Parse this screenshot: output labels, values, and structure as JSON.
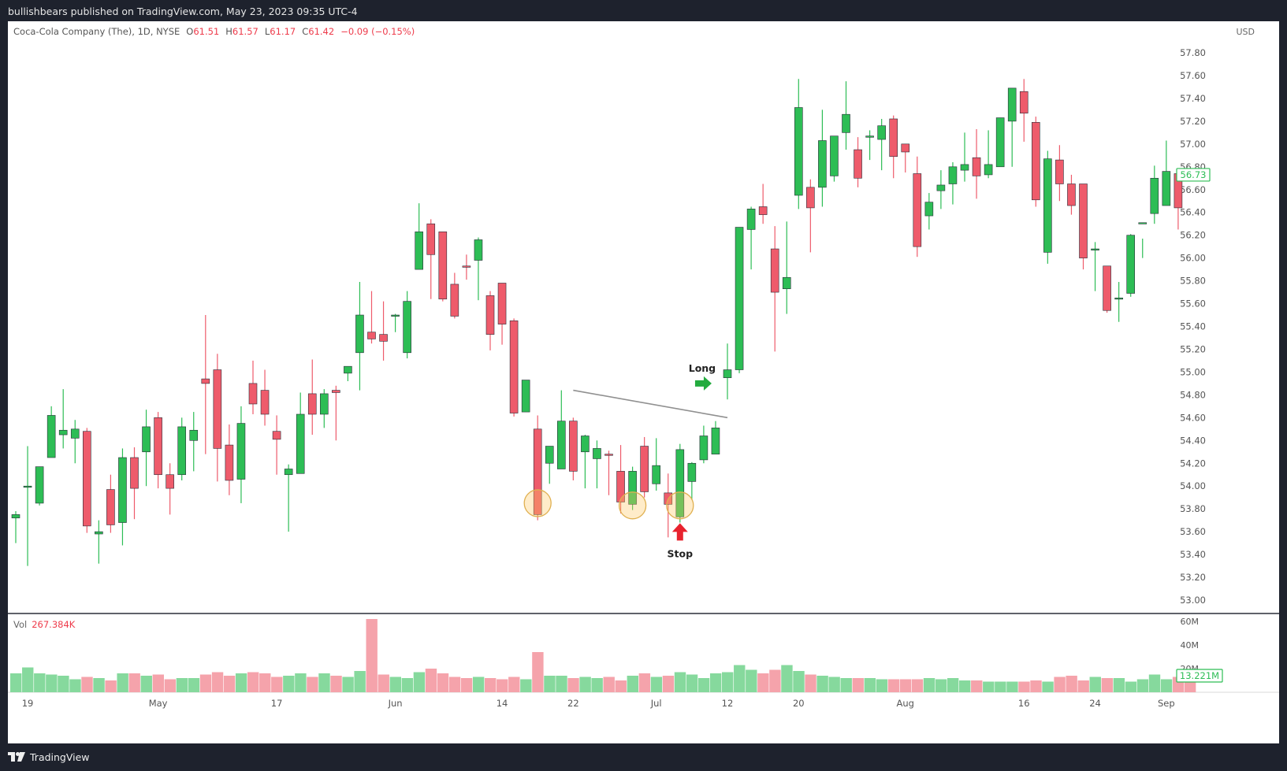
{
  "header": {
    "published_text": "bullishbears published on TradingView.com, May 23, 2023 09:35 UTC-4"
  },
  "legend": {
    "symbol": "Coca-Cola Company (The), 1D, NYSE",
    "o_label": "O",
    "o_value": "61.51",
    "h_label": "H",
    "h_value": "61.57",
    "l_label": "L",
    "l_value": "61.17",
    "c_label": "C",
    "c_value": "61.42",
    "change": "−0.09 (−0.15%)"
  },
  "currency": "USD",
  "volume_legend": {
    "label": "Vol",
    "value": "267.384K"
  },
  "footer": {
    "brand": "TradingView"
  },
  "colors": {
    "up": "#2dbd55",
    "down": "#ee5b6b",
    "up_vol": "#86d99d",
    "down_vol": "#f5a3ab",
    "accent_green": "#22ab3e",
    "accent_red": "#e8232e"
  },
  "chart_data": {
    "type": "candlestick",
    "y_ticks": [
      "57.80",
      "57.60",
      "57.40",
      "57.20",
      "57.00",
      "56.80",
      "56.60",
      "56.40",
      "56.20",
      "56.00",
      "55.80",
      "55.60",
      "55.40",
      "55.20",
      "55.00",
      "54.80",
      "54.60",
      "54.40",
      "54.20",
      "54.00",
      "53.80",
      "53.60",
      "53.40",
      "53.20",
      "53.00"
    ],
    "ylim": [
      52.9,
      58.0
    ],
    "last_price": "56.73",
    "x_ticks": [
      {
        "i": 1,
        "label": "19"
      },
      {
        "i": 12,
        "label": "May"
      },
      {
        "i": 22,
        "label": "17"
      },
      {
        "i": 32,
        "label": "Jun"
      },
      {
        "i": 41,
        "label": "14"
      },
      {
        "i": 47,
        "label": "22"
      },
      {
        "i": 54,
        "label": "Jul"
      },
      {
        "i": 60,
        "label": "12"
      },
      {
        "i": 66,
        "label": "20"
      },
      {
        "i": 75,
        "label": "Aug"
      },
      {
        "i": 85,
        "label": "16"
      },
      {
        "i": 91,
        "label": "24"
      },
      {
        "i": 97,
        "label": "Sep"
      }
    ],
    "candles": [
      [
        53.72,
        53.78,
        53.75,
        53.5
      ],
      [
        54.0,
        54.35,
        54.0,
        53.3
      ],
      [
        53.85,
        54.17,
        54.17,
        53.83
      ],
      [
        54.25,
        54.7,
        54.62,
        54.25
      ],
      [
        54.45,
        54.85,
        54.49,
        54.33
      ],
      [
        54.42,
        54.58,
        54.5,
        54.2
      ],
      [
        54.48,
        54.51,
        53.65,
        53.59
      ],
      [
        53.58,
        53.7,
        53.6,
        53.32
      ],
      [
        53.97,
        54.1,
        53.66,
        53.59
      ],
      [
        53.68,
        54.33,
        54.25,
        53.48
      ],
      [
        54.25,
        54.34,
        53.98,
        53.71
      ],
      [
        54.3,
        54.67,
        54.52,
        54.0
      ],
      [
        54.6,
        54.65,
        54.1,
        53.98
      ],
      [
        54.1,
        54.2,
        53.98,
        53.75
      ],
      [
        54.1,
        54.6,
        54.52,
        54.05
      ],
      [
        54.4,
        54.65,
        54.49,
        54.13
      ],
      [
        54.94,
        55.5,
        54.9,
        54.28
      ],
      [
        55.02,
        55.16,
        54.33,
        54.04
      ],
      [
        54.36,
        54.54,
        54.05,
        53.92
      ],
      [
        54.06,
        54.7,
        54.55,
        53.85
      ],
      [
        54.9,
        55.1,
        54.72,
        54.63
      ],
      [
        54.84,
        55.02,
        54.63,
        54.53
      ],
      [
        54.48,
        54.62,
        54.41,
        54.1
      ],
      [
        54.1,
        54.19,
        54.15,
        53.6
      ],
      [
        54.11,
        54.82,
        54.63,
        54.27
      ],
      [
        54.81,
        55.11,
        54.63,
        54.45
      ],
      [
        54.63,
        54.85,
        54.81,
        54.51
      ],
      [
        54.84,
        54.88,
        54.82,
        54.4
      ],
      [
        54.99,
        55.05,
        55.05,
        54.92
      ],
      [
        55.17,
        55.79,
        55.5,
        54.84
      ],
      [
        55.35,
        55.71,
        55.29,
        55.25
      ],
      [
        55.33,
        55.62,
        55.27,
        55.1
      ],
      [
        55.49,
        55.51,
        55.5,
        55.35
      ],
      [
        55.17,
        55.71,
        55.62,
        55.12
      ],
      [
        55.9,
        56.48,
        56.23,
        55.91
      ],
      [
        56.3,
        56.34,
        56.03,
        55.64
      ],
      [
        56.23,
        56.23,
        55.64,
        55.62
      ],
      [
        55.77,
        55.87,
        55.49,
        55.47
      ],
      [
        55.93,
        56.03,
        55.92,
        55.81
      ],
      [
        55.98,
        56.18,
        56.16,
        55.63
      ],
      [
        55.67,
        55.71,
        55.33,
        55.19
      ],
      [
        55.78,
        55.78,
        55.42,
        55.24
      ],
      [
        55.45,
        55.47,
        54.64,
        54.61
      ],
      [
        54.65,
        54.9,
        54.93,
        54.65
      ],
      [
        54.5,
        54.62,
        53.75,
        53.7
      ],
      [
        54.2,
        54.35,
        54.35,
        54.02
      ],
      [
        54.15,
        54.84,
        54.57,
        54.2
      ],
      [
        54.57,
        54.6,
        54.13,
        54.05
      ],
      [
        54.3,
        54.45,
        54.44,
        53.98
      ],
      [
        54.24,
        54.4,
        54.33,
        53.98
      ],
      [
        54.28,
        54.31,
        54.27,
        53.92
      ],
      [
        54.13,
        54.36,
        53.86,
        53.76
      ],
      [
        53.84,
        54.17,
        54.13,
        53.79
      ],
      [
        54.35,
        54.43,
        53.95,
        53.9
      ],
      [
        54.02,
        54.42,
        54.18,
        53.96
      ],
      [
        53.94,
        54.11,
        53.84,
        53.55
      ],
      [
        53.73,
        54.37,
        54.32,
        53.68
      ],
      [
        54.04,
        54.21,
        54.2,
        53.88
      ],
      [
        54.23,
        54.53,
        54.44,
        54.2
      ],
      [
        54.28,
        54.57,
        54.51,
        54.31
      ],
      [
        54.95,
        55.25,
        55.02,
        54.76
      ],
      [
        55.02,
        56.27,
        56.27,
        54.99
      ],
      [
        56.25,
        56.45,
        56.43,
        55.9
      ],
      [
        56.45,
        56.65,
        56.38,
        56.3
      ],
      [
        56.08,
        56.28,
        55.7,
        55.18
      ],
      [
        55.73,
        56.32,
        55.83,
        55.51
      ],
      [
        56.55,
        57.57,
        57.32,
        56.43
      ],
      [
        56.62,
        56.69,
        56.44,
        56.05
      ],
      [
        56.62,
        57.3,
        57.03,
        56.45
      ],
      [
        56.72,
        57.05,
        57.07,
        56.67
      ],
      [
        57.1,
        57.55,
        57.26,
        56.95
      ],
      [
        56.95,
        57.06,
        56.7,
        56.62
      ],
      [
        57.07,
        57.12,
        57.07,
        56.86
      ],
      [
        57.04,
        57.22,
        57.16,
        56.77
      ],
      [
        57.22,
        57.25,
        56.89,
        56.7
      ],
      [
        57.0,
        57.0,
        56.93,
        56.75
      ],
      [
        56.74,
        56.89,
        56.1,
        56.01
      ],
      [
        56.37,
        56.57,
        56.49,
        56.25
      ],
      [
        56.59,
        56.77,
        56.64,
        56.43
      ],
      [
        56.65,
        56.84,
        56.8,
        56.47
      ],
      [
        56.77,
        57.1,
        56.82,
        56.67
      ],
      [
        56.88,
        57.13,
        56.72,
        56.52
      ],
      [
        56.73,
        57.12,
        56.82,
        56.7
      ],
      [
        56.8,
        57.23,
        57.23,
        56.88
      ],
      [
        57.2,
        57.49,
        57.49,
        56.8
      ],
      [
        57.46,
        57.57,
        57.27,
        57.02
      ],
      [
        57.19,
        57.24,
        56.51,
        56.45
      ],
      [
        56.05,
        56.94,
        56.87,
        55.95
      ],
      [
        56.86,
        56.99,
        56.65,
        56.5
      ],
      [
        56.65,
        56.73,
        56.46,
        56.38
      ],
      [
        56.65,
        56.62,
        56.0,
        55.9
      ],
      [
        56.07,
        56.14,
        56.08,
        55.71
      ],
      [
        55.93,
        55.91,
        55.54,
        55.52
      ],
      [
        55.65,
        55.79,
        55.65,
        55.44
      ],
      [
        55.69,
        56.21,
        56.2,
        55.66
      ],
      [
        56.3,
        56.17,
        56.31,
        56.0
      ],
      [
        56.39,
        56.81,
        56.7,
        56.3
      ],
      [
        56.46,
        57.03,
        56.76,
        56.5
      ],
      [
        56.74,
        56.74,
        56.44,
        56.25
      ]
    ],
    "volume": {
      "ylim": [
        0,
        63000000
      ],
      "y_ticks": [
        "60M",
        "40M",
        "20M"
      ],
      "last_value": "13.221M",
      "values": [
        16,
        21,
        16,
        15,
        14,
        11,
        13,
        12,
        10,
        16,
        16,
        14,
        15,
        11,
        12,
        12,
        15,
        17,
        14,
        16,
        17,
        16,
        13,
        14,
        16,
        13,
        16,
        14,
        13,
        18,
        62,
        15,
        13,
        12,
        17,
        20,
        16,
        13,
        12,
        13,
        12,
        11,
        13,
        11,
        34,
        14,
        14,
        12,
        13,
        12,
        13,
        10,
        14,
        16,
        13,
        14,
        17,
        15,
        12,
        16,
        17,
        23,
        19,
        16,
        19,
        23,
        18,
        15,
        14,
        13,
        12,
        12,
        12,
        11,
        11,
        11,
        11,
        12,
        11,
        12,
        10,
        10,
        9,
        9,
        9,
        9,
        10,
        9,
        13,
        14,
        10,
        13,
        12,
        12,
        9,
        11,
        15,
        11,
        13,
        14
      ]
    },
    "annotations": {
      "long_label": "Long",
      "stop_label": "Stop",
      "trendline": [
        {
          "i": 47,
          "price": 54.84
        },
        {
          "i": 60,
          "price": 54.6
        }
      ],
      "circles": [
        {
          "i": 44,
          "price": 53.85
        },
        {
          "i": 52,
          "price": 53.83
        },
        {
          "i": 56,
          "price": 53.83
        }
      ],
      "long_arrow": {
        "i": 58.8,
        "price": 54.9
      },
      "stop_arrow": {
        "i": 56,
        "price": 53.55
      }
    }
  }
}
